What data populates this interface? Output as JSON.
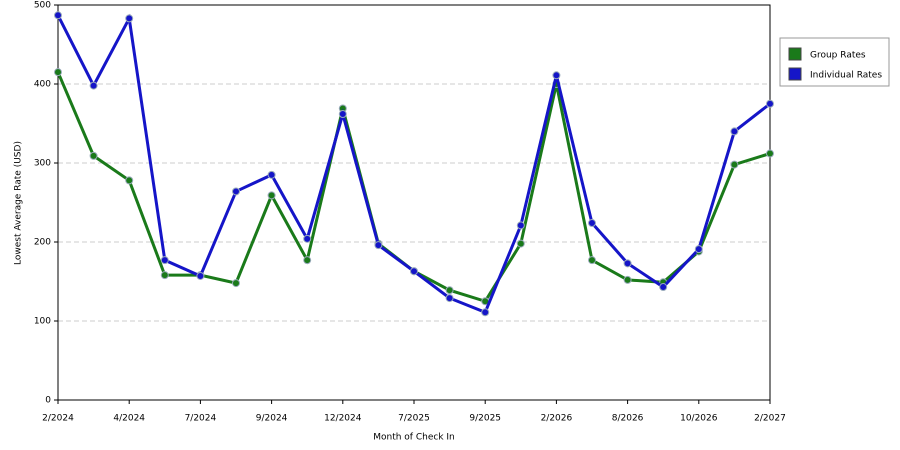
{
  "chart_data": {
    "type": "line",
    "x_label": "Month of Check In",
    "y_label": "Lowest Average Rate (USD)",
    "categories": [
      "2/2024",
      null,
      "4/2024",
      null,
      "7/2024",
      null,
      "9/2024",
      null,
      "12/2024",
      null,
      "7/2025",
      null,
      "9/2025",
      null,
      "2/2026",
      null,
      "8/2026",
      null,
      "10/2026",
      null,
      "2/2027"
    ],
    "series": [
      {
        "name": "Group Rates",
        "color": "#1a7a1a",
        "values": [
          415,
          309,
          278,
          158,
          158,
          148,
          259,
          177,
          369,
          198,
          163,
          139,
          125,
          198,
          400,
          177,
          152,
          149,
          188,
          298,
          312
        ]
      },
      {
        "name": "Individual Rates",
        "color": "#1515c8",
        "values": [
          487,
          398,
          483,
          177,
          157,
          264,
          285,
          204,
          362,
          196,
          163,
          129,
          111,
          221,
          411,
          224,
          173,
          143,
          191,
          340,
          375
        ]
      }
    ],
    "ylim": [
      0,
      500
    ],
    "yticks": [
      0,
      100,
      200,
      300,
      400,
      500
    ],
    "grid": true,
    "legend": "right"
  }
}
